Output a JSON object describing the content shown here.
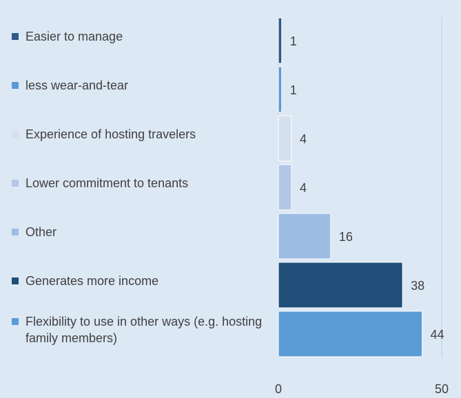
{
  "chart_data": {
    "type": "barh",
    "categories": [
      "Easier to manage",
      "less wear-and-tear",
      "Experience of hosting travelers",
      "Lower commitment to tenants",
      "Other",
      "Generates more income",
      "Flexibility to use in other ways (e.g. hosting family members)"
    ],
    "values": [
      1,
      1,
      4,
      4,
      16,
      38,
      44
    ],
    "colors": [
      "#2e5b88",
      "#5b9bd5",
      "#d6e0ef",
      "#b4c7e7",
      "#9dbde2",
      "#1f4e79",
      "#5b9bd5"
    ],
    "xlim": [
      0,
      50
    ],
    "xticks": [
      0,
      50
    ],
    "grid": true
  }
}
